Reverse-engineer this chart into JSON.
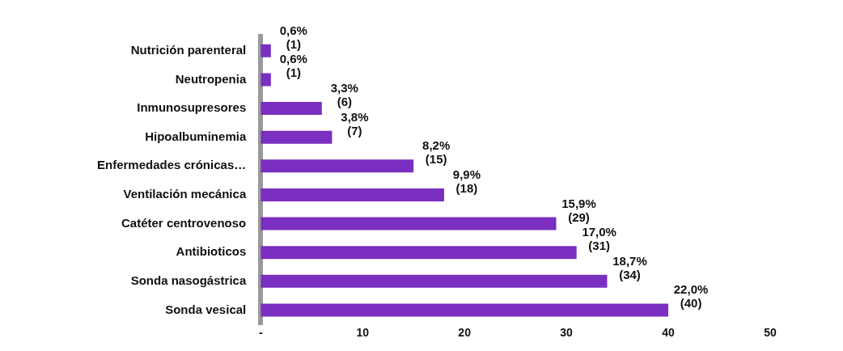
{
  "chart_data": {
    "type": "bar",
    "orientation": "horizontal",
    "categories": [
      "Nutrición parenteral",
      "Neutropenia",
      "Inmunosupresores",
      "Hipoalbuminemia",
      "Enfermedades crónicas…",
      "Ventilación mecánica",
      "Catéter centrovenoso",
      "Antibioticos",
      "Sonda nasogástrica",
      "Sonda vesical"
    ],
    "values": [
      1,
      1,
      6,
      7,
      15,
      18,
      29,
      31,
      34,
      40
    ],
    "value_labels": [
      "0,6%\n(1)",
      "0,6%\n(1)",
      "3,3%\n(6)",
      "3,8%\n(7)",
      "8,2%\n(15)",
      "9,9%\n(18)",
      "15,9%\n(29)",
      "17,0%\n(31)",
      "18,7%\n(34)",
      "22,0%\n(40)"
    ],
    "color": "#7a2fc0",
    "xlim": [
      0,
      50
    ],
    "xticks": [
      {
        "value": 0,
        "label": "-"
      },
      10,
      20,
      30,
      40,
      50
    ],
    "grid": false,
    "legend": false
  }
}
